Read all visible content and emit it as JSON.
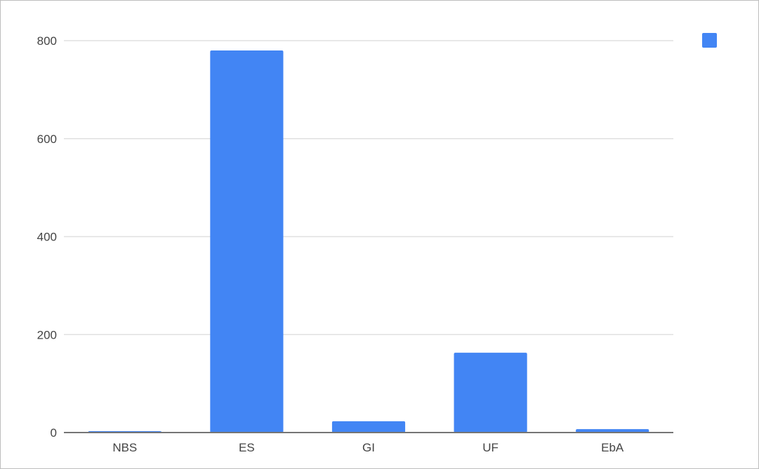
{
  "chart_data": {
    "type": "bar",
    "categories": [
      "NBS",
      "ES",
      "GI",
      "UF",
      "EbA"
    ],
    "values": [
      2,
      780,
      23,
      163,
      7
    ],
    "ylim": [
      0,
      800
    ],
    "yticks": [
      0,
      200,
      400,
      600,
      800
    ],
    "grid": true,
    "legend_position": "top-right",
    "colors": {
      "bar": "#4285f4",
      "grid": "#e0e0e0",
      "axis": "#757575"
    }
  }
}
